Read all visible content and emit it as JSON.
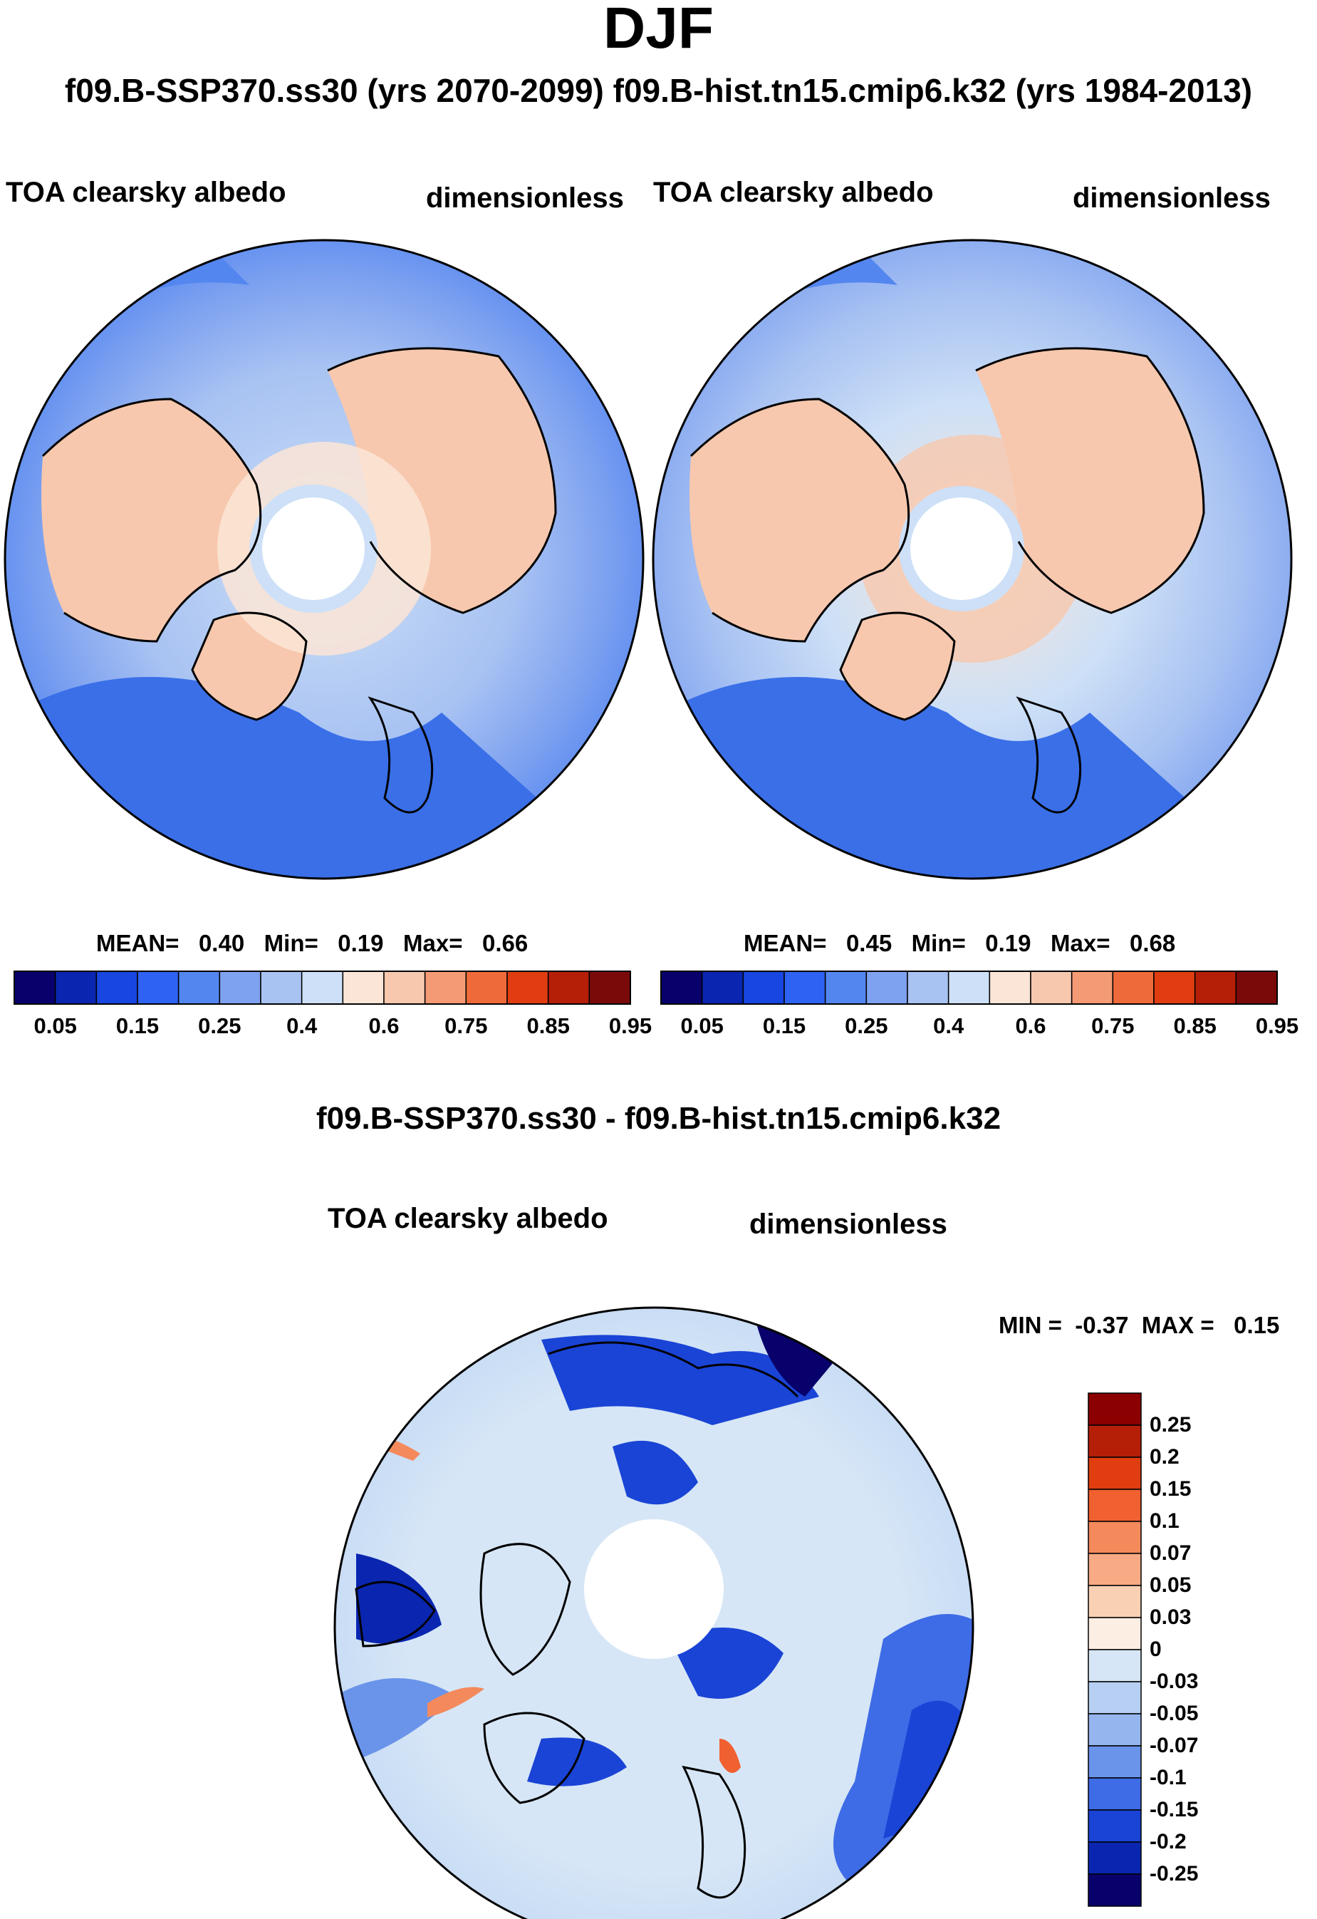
{
  "page": {
    "title": "DJF",
    "subtitle": "f09.B-SSP370.ss30 (yrs 2070-2099)  f09.B-hist.tn15.cmip6.k32 (yrs 1984-2013)"
  },
  "chart_data": [
    {
      "type": "heatmap",
      "projection": "north polar stereographic",
      "case": "f09.B-SSP370.ss30 (yrs 2070-2099)",
      "variable": "TOA clearsky albedo",
      "units": "dimensionless",
      "stats": {
        "mean": "0.40",
        "min": "0.19",
        "max": "0.66"
      },
      "stats_text": "MEAN=   0.40   Min=   0.19   Max=   0.66",
      "colorbar": {
        "orientation": "horizontal",
        "tick_labels": [
          "0.05",
          "0.15",
          "0.25",
          "0.4",
          "0.6",
          "0.75",
          "0.85",
          "0.95"
        ],
        "colors": [
          "#08006b",
          "#0a26b0",
          "#1846e0",
          "#2e62f2",
          "#5486f0",
          "#7ea2f0",
          "#a8c2f2",
          "#cde0f7",
          "#fbe5d6",
          "#f7c8ae",
          "#f49b75",
          "#ef6a3a",
          "#e03d10",
          "#b51f08",
          "#7a0a0a"
        ]
      }
    },
    {
      "type": "heatmap",
      "projection": "north polar stereographic",
      "case": "f09.B-hist.tn15.cmip6.k32 (yrs 1984-2013)",
      "variable": "TOA clearsky albedo",
      "units": "dimensionless",
      "stats": {
        "mean": "0.45",
        "min": "0.19",
        "max": "0.68"
      },
      "stats_text": "MEAN=   0.45   Min=   0.19   Max=   0.68",
      "colorbar": {
        "orientation": "horizontal",
        "tick_labels": [
          "0.05",
          "0.15",
          "0.25",
          "0.4",
          "0.6",
          "0.75",
          "0.85",
          "0.95"
        ],
        "colors": [
          "#08006b",
          "#0a26b0",
          "#1846e0",
          "#2e62f2",
          "#5486f0",
          "#7ea2f0",
          "#a8c2f2",
          "#cde0f7",
          "#fbe5d6",
          "#f7c8ae",
          "#f49b75",
          "#ef6a3a",
          "#e03d10",
          "#b51f08",
          "#7a0a0a"
        ]
      }
    },
    {
      "type": "heatmap",
      "projection": "north polar stereographic",
      "title": "f09.B-SSP370.ss30 - f09.B-hist.tn15.cmip6.k32",
      "variable": "TOA clearsky albedo",
      "units": "dimensionless",
      "stats": {
        "min": "-0.37",
        "max": "0.15"
      },
      "stats_text": "MIN =  -0.37  MAX =   0.15",
      "colorbar": {
        "orientation": "vertical",
        "tick_labels": [
          "0.25",
          "0.2",
          "0.15",
          "0.1",
          "0.07",
          "0.05",
          "0.03",
          "0",
          "-0.03",
          "-0.05",
          "-0.07",
          "-0.1",
          "-0.15",
          "-0.2",
          "-0.25"
        ],
        "colors": [
          "#8b0000",
          "#b51f08",
          "#e03d10",
          "#f06030",
          "#f4895c",
          "#f7aa84",
          "#fad0b4",
          "#fdeee3",
          "#d6e6f6",
          "#b6cff2",
          "#95b5ee",
          "#6a94ea",
          "#3e6be6",
          "#1a44d6",
          "#0a26b0",
          "#08006b"
        ]
      }
    }
  ]
}
